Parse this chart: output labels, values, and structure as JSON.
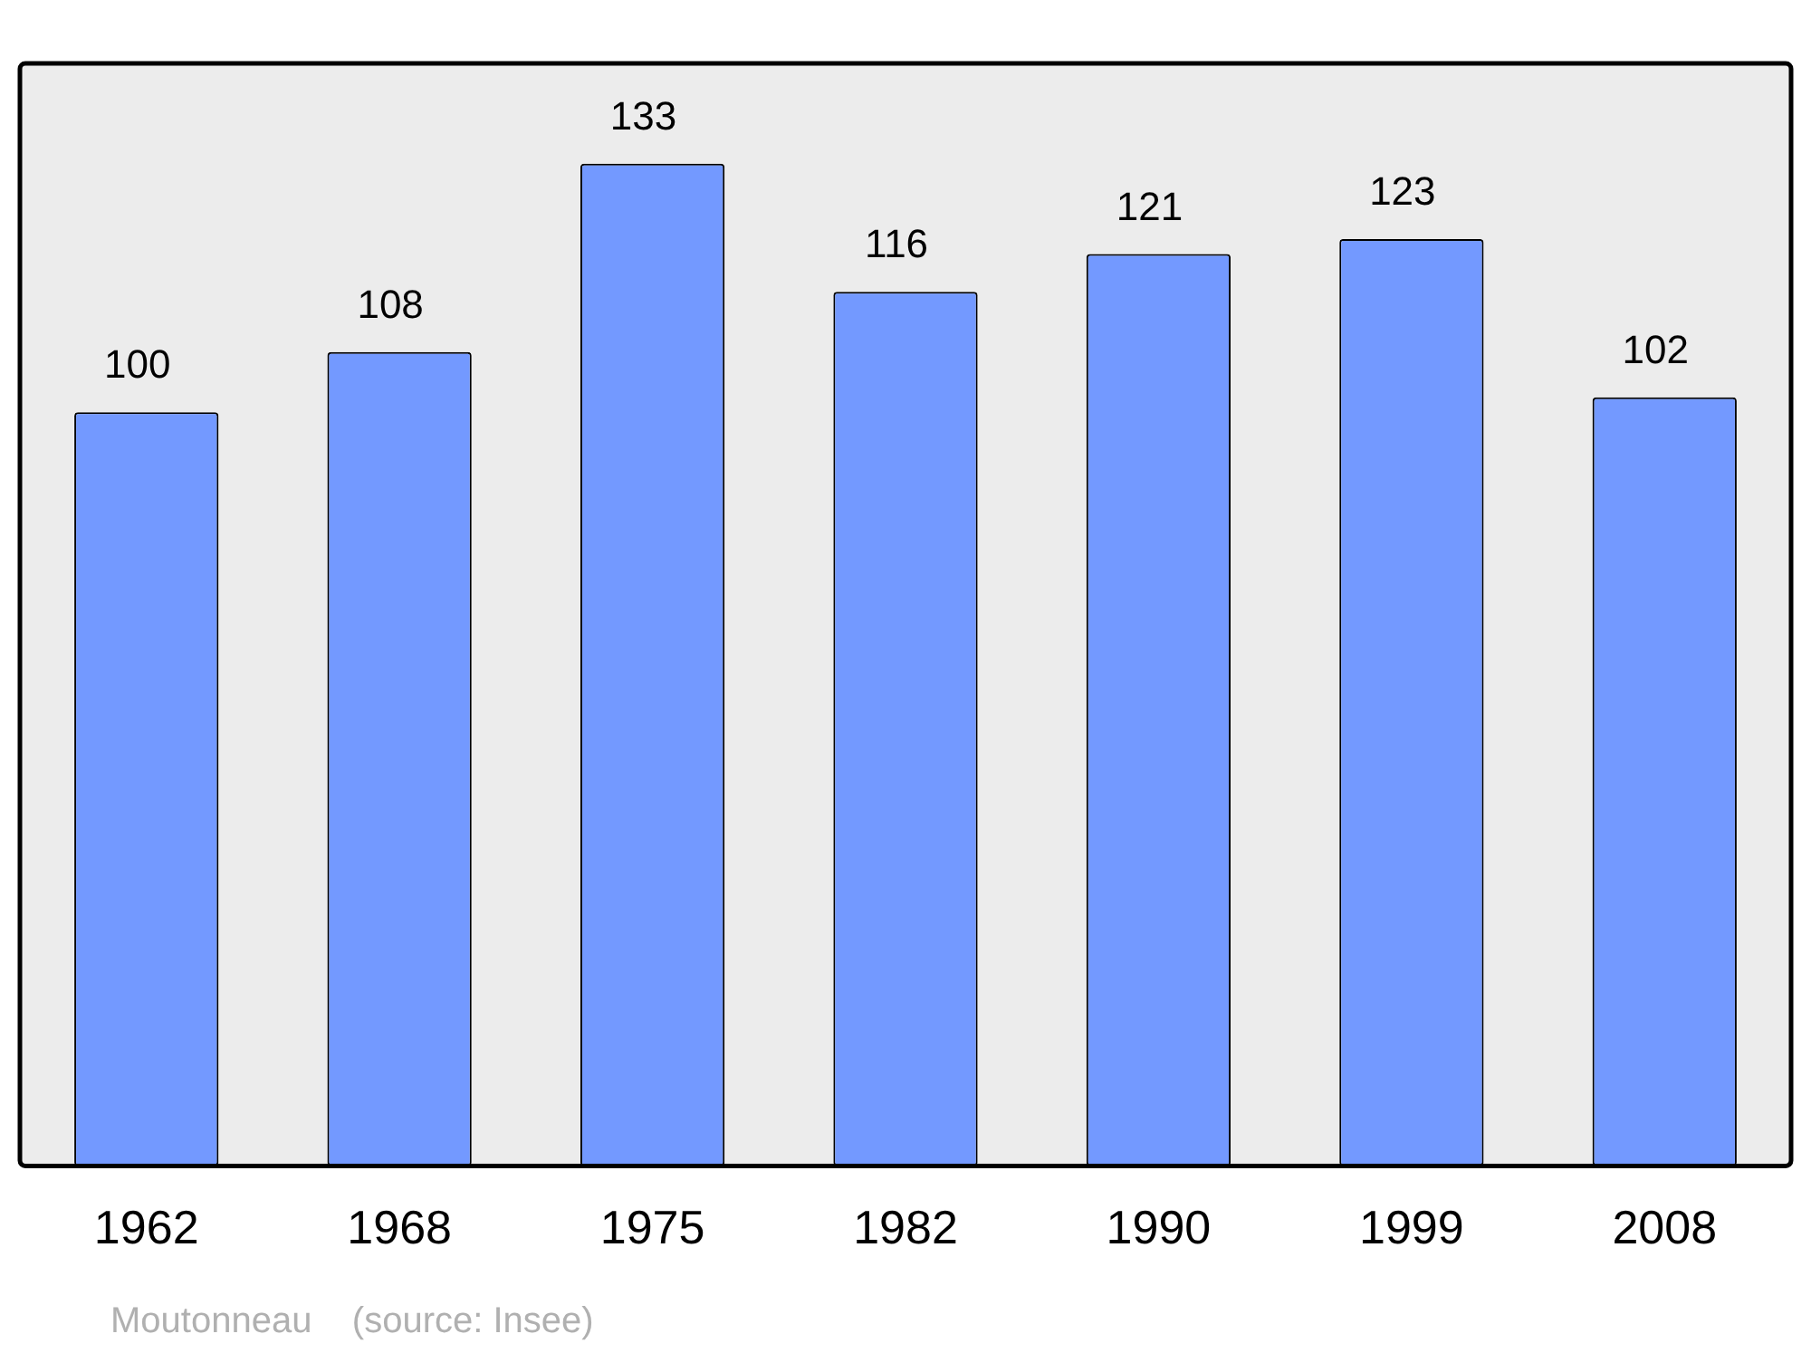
{
  "chart_data": {
    "type": "bar",
    "categories": [
      "1962",
      "1968",
      "1975",
      "1982",
      "1990",
      "1999",
      "2008"
    ],
    "values": [
      100,
      108,
      133,
      116,
      121,
      123,
      102
    ],
    "color": "#7399ff",
    "data_labels": true,
    "grid": false,
    "legend": false,
    "annotations": [
      "Moutonneau    (source: Insee)"
    ]
  }
}
